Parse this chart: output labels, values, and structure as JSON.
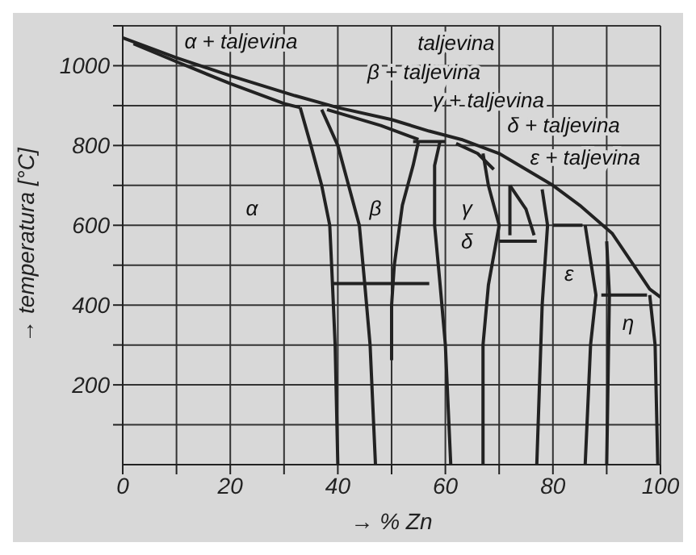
{
  "chart_data": {
    "type": "line",
    "xlabel": "→ % Zn",
    "ylabel": "→ temperatura [°C]",
    "xlim": [
      0,
      100
    ],
    "ylim": [
      0,
      1100
    ],
    "xticks": [
      0,
      {
        "value": 10,
        "label": null
      },
      20,
      {
        "value": 30,
        "label": null
      },
      40,
      {
        "value": 50,
        "label": null
      },
      60,
      {
        "value": 70,
        "label": null
      },
      80,
      {
        "value": 90,
        "label": null
      },
      100
    ],
    "yticks": [
      {
        "value": 100,
        "label": null
      },
      200,
      {
        "value": 300,
        "label": null
      },
      400,
      {
        "value": 500,
        "label": null
      },
      600,
      {
        "value": 700,
        "label": null
      },
      800,
      {
        "value": 900,
        "label": null
      },
      1000,
      {
        "value": 1100,
        "label": null
      }
    ],
    "grid": true,
    "marker": "none",
    "line_style": "solid",
    "series": [
      {
        "color": "#222222",
        "x": [
          0,
          10,
          20,
          32,
          40,
          50,
          57,
          63,
          70,
          75,
          80,
          85,
          91,
          95,
          98,
          100
        ],
        "values": [
          1070,
          1020,
          975,
          925,
          895,
          865,
          836,
          815,
          780,
          740,
          700,
          650,
          580,
          500,
          440,
          420
        ]
      },
      {
        "color": "#222222",
        "x": [
          2,
          10,
          20,
          30,
          33
        ],
        "values": [
          1055,
          1010,
          955,
          905,
          895
        ]
      },
      {
        "color": "#222222",
        "x": [
          33,
          35,
          37,
          38.5,
          39,
          39.5,
          40
        ],
        "values": [
          895,
          800,
          700,
          600,
          454,
          300,
          0
        ]
      },
      {
        "color": "#222222",
        "x": [
          37,
          40,
          42,
          44,
          45,
          46,
          47
        ],
        "values": [
          890,
          800,
          700,
          600,
          454,
          300,
          0
        ]
      },
      {
        "color": "#222222",
        "x": [
          38,
          48,
          55
        ],
        "values": [
          890,
          850,
          815
        ]
      },
      {
        "color": "#222222",
        "x": [
          55,
          54,
          52,
          50.5,
          50,
          50
        ],
        "values": [
          810,
          750,
          650,
          500,
          400,
          262
        ]
      },
      {
        "color": "#222222",
        "x": [
          39,
          57
        ],
        "values": [
          454,
          454
        ]
      },
      {
        "color": "#222222",
        "x": [
          54,
          60
        ],
        "values": [
          810,
          810
        ]
      },
      {
        "color": "#222222",
        "x": [
          59,
          58,
          58,
          59,
          60,
          61
        ],
        "values": [
          810,
          750,
          600,
          454,
          300,
          0
        ]
      },
      {
        "color": "#222222",
        "x": [
          62,
          66,
          69
        ],
        "values": [
          805,
          780,
          740
        ]
      },
      {
        "color": "#222222",
        "x": [
          67,
          68,
          70,
          68,
          67,
          67
        ],
        "values": [
          780,
          700,
          600,
          450,
          300,
          0
        ]
      },
      {
        "color": "#222222",
        "x": [
          72,
          75,
          76.5
        ],
        "values": [
          700,
          640,
          575
        ]
      },
      {
        "color": "#222222",
        "x": [
          72,
          72
        ],
        "values": [
          700,
          575
        ]
      },
      {
        "color": "#222222",
        "x": [
          70,
          77
        ],
        "values": [
          560,
          560
        ]
      },
      {
        "color": "#222222",
        "x": [
          78,
          79,
          78,
          77
        ],
        "values": [
          690,
          600,
          400,
          0
        ]
      },
      {
        "color": "#222222",
        "x": [
          80,
          85.5
        ],
        "values": [
          600,
          600
        ]
      },
      {
        "color": "#222222",
        "x": [
          86,
          88,
          87,
          86
        ],
        "values": [
          600,
          425,
          300,
          0
        ]
      },
      {
        "color": "#222222",
        "x": [
          89,
          97.5
        ],
        "values": [
          425,
          425
        ]
      },
      {
        "color": "#222222",
        "x": [
          90,
          90.5,
          90
        ],
        "values": [
          560,
          425,
          0
        ]
      },
      {
        "color": "#222222",
        "x": [
          98,
          99,
          99.5
        ],
        "values": [
          425,
          300,
          0
        ]
      }
    ],
    "annotations": [
      "α + taljevina",
      "taljevina",
      "β + taljevina",
      "γ + taljevina",
      "δ + taljevina",
      "ε + taljevina",
      "α",
      "β",
      "γ",
      "δ",
      "ε",
      "η"
    ]
  }
}
